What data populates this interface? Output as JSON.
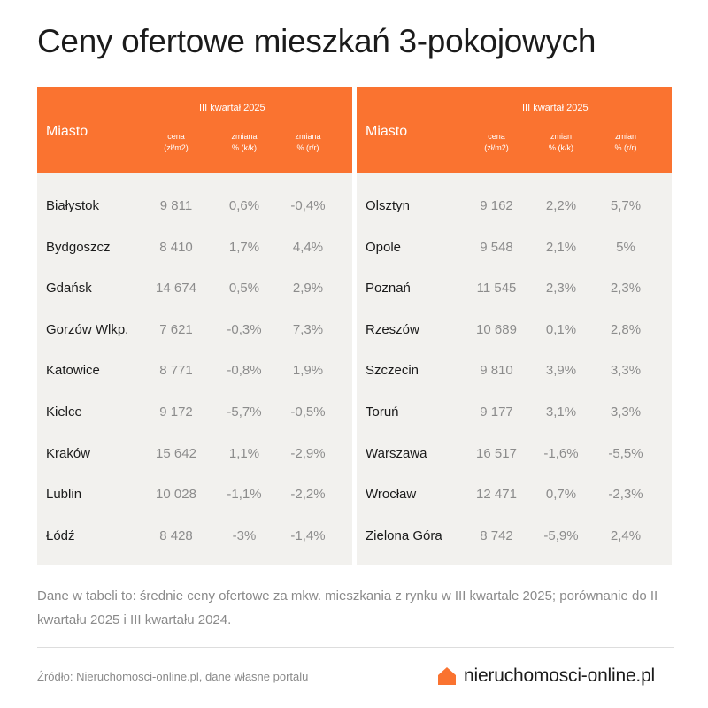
{
  "title": "Ceny ofertowe mieszkań 3-pokojowych",
  "header": {
    "city_label": "Miasto",
    "period": "III kwartał 2025",
    "left_cols": [
      "cena\n(zł/m2)",
      "zmiana\n% (k/k)",
      "zmiana\n% (r/r)"
    ],
    "right_cols": [
      "cena\n(zł/m2)",
      "zmian\n% (k/k)",
      "zmian\n% (r/r)"
    ]
  },
  "chart_data": {
    "type": "table",
    "columns": [
      "Miasto",
      "cena (zł/m2)",
      "zmiana % (k/k)",
      "zmiana % (r/r)"
    ],
    "left_rows": [
      [
        "Białystok",
        "9 811",
        "0,6%",
        "-0,4%"
      ],
      [
        "Bydgoszcz",
        "8 410",
        "1,7%",
        "4,4%"
      ],
      [
        "Gdańsk",
        "14 674",
        "0,5%",
        "2,9%"
      ],
      [
        "Gorzów Wlkp.",
        "7 621",
        "-0,3%",
        "7,3%"
      ],
      [
        "Katowice",
        "8 771",
        "-0,8%",
        "1,9%"
      ],
      [
        "Kielce",
        "9 172",
        "-5,7%",
        "-0,5%"
      ],
      [
        "Kraków",
        "15 642",
        "1,1%",
        "-2,9%"
      ],
      [
        "Lublin",
        "10 028",
        "-1,1%",
        "-2,2%"
      ],
      [
        "Łódź",
        "8 428",
        "-3%",
        "-1,4%"
      ]
    ],
    "right_rows": [
      [
        "Olsztyn",
        "9 162",
        "2,2%",
        "5,7%"
      ],
      [
        "Opole",
        "9 548",
        "2,1%",
        "5%"
      ],
      [
        "Poznań",
        "11 545",
        "2,3%",
        "2,3%"
      ],
      [
        "Rzeszów",
        "10 689",
        "0,1%",
        "2,8%"
      ],
      [
        "Szczecin",
        "9 810",
        "3,9%",
        "3,3%"
      ],
      [
        "Toruń",
        "9 177",
        "3,1%",
        "3,3%"
      ],
      [
        "Warszawa",
        "16 517",
        "-1,6%",
        "-5,5%"
      ],
      [
        "Wrocław",
        "12 471",
        "0,7%",
        "-2,3%"
      ],
      [
        "Zielona Góra",
        "8 742",
        "-5,9%",
        "2,4%"
      ]
    ]
  },
  "note": "Dane w tabeli to: średnie ceny ofertowe za mkw. mieszkania z rynku w III kwartale 2025; porównanie do II kwartału 2025 i III kwartału 2024.",
  "source": "Źródło: Nieruchomosci-online.pl, dane własne portalu",
  "brand": {
    "name": "nieruchomosci-online.pl",
    "logo_icon": "house-icon",
    "accent_color": "#fa7330"
  }
}
